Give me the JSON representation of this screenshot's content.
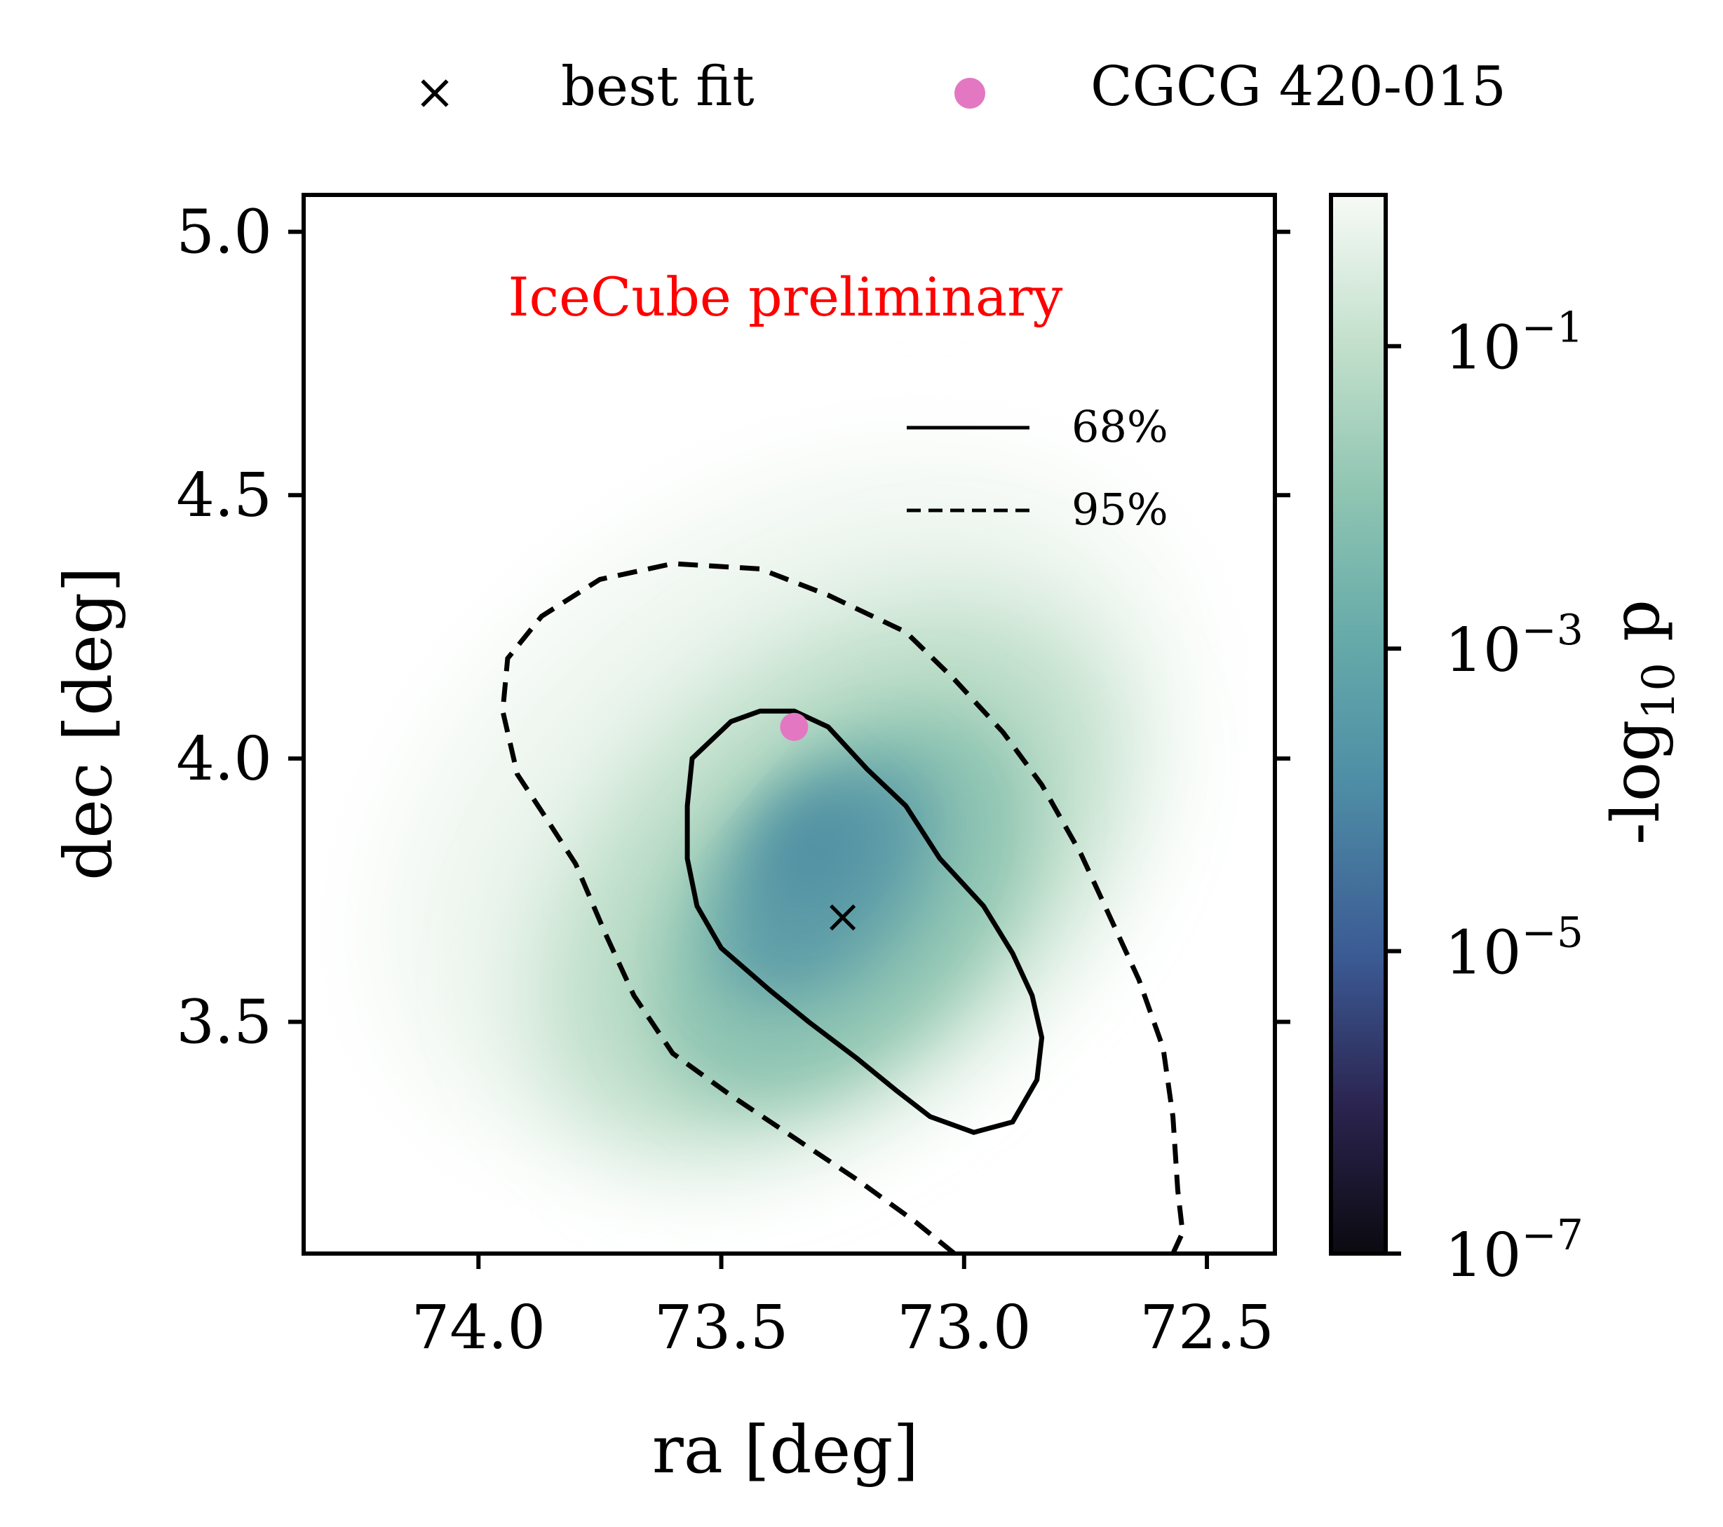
{
  "chart_data": {
    "type": "heatmap",
    "title": "",
    "xlabel": "ra [deg]",
    "ylabel": "dec [deg]",
    "xlim": [
      74.36,
      72.36
    ],
    "ylim": [
      3.06,
      5.07
    ],
    "x_ticks": [
      74.0,
      73.5,
      73.0,
      72.5
    ],
    "x_tick_labels": [
      "74.0",
      "73.5",
      "73.0",
      "72.5"
    ],
    "y_ticks": [
      3.5,
      4.0,
      4.5,
      5.0
    ],
    "y_tick_labels": [
      "3.5",
      "4.0",
      "4.5",
      "5.0"
    ],
    "annotation": {
      "text": "IceCube preliminary",
      "color": "#ff0000"
    },
    "colorbar": {
      "label": "-log10 p",
      "label_main": "-log",
      "label_sub": "10",
      "label_tail": " p",
      "scale": "log",
      "range_exponents": [
        -7,
        0
      ],
      "ticks": [
        {
          "exponent": -7,
          "base": "10",
          "exp": "−7"
        },
        {
          "exponent": -5,
          "base": "10",
          "exp": "−5"
        },
        {
          "exponent": -3,
          "base": "10",
          "exp": "−3"
        },
        {
          "exponent": -1,
          "base": "10",
          "exp": "−1"
        }
      ],
      "colormap": [
        "#0b0a10",
        "#2b2450",
        "#3b5a94",
        "#4f8fa6",
        "#66aaa9",
        "#8fc5b2",
        "#c3e0cc",
        "#f6faf6"
      ]
    },
    "best_fit": {
      "ra": 73.25,
      "dec": 3.7,
      "label": "best fit",
      "marker": "×",
      "color": "#000000"
    },
    "source": {
      "ra": 73.35,
      "dec": 4.06,
      "label": "CGCG 420-015",
      "color": "#e377c2"
    },
    "contours": [
      {
        "label": "68%",
        "style": "solid",
        "points": [
          [
            73.35,
            4.09
          ],
          [
            73.28,
            4.06
          ],
          [
            73.2,
            3.98
          ],
          [
            73.12,
            3.91
          ],
          [
            73.05,
            3.81
          ],
          [
            72.96,
            3.72
          ],
          [
            72.9,
            3.63
          ],
          [
            72.86,
            3.55
          ],
          [
            72.84,
            3.47
          ],
          [
            72.85,
            3.39
          ],
          [
            72.9,
            3.31
          ],
          [
            72.98,
            3.29
          ],
          [
            73.07,
            3.32
          ],
          [
            73.14,
            3.37
          ],
          [
            73.22,
            3.43
          ],
          [
            73.32,
            3.5
          ],
          [
            73.4,
            3.56
          ],
          [
            73.5,
            3.64
          ],
          [
            73.55,
            3.72
          ],
          [
            73.57,
            3.81
          ],
          [
            73.57,
            3.91
          ],
          [
            73.56,
            4.0
          ],
          [
            73.48,
            4.07
          ],
          [
            73.42,
            4.09
          ],
          [
            73.35,
            4.09
          ]
        ]
      },
      {
        "label": "95%",
        "style": "dashed",
        "points": [
          [
            73.02,
            3.06
          ],
          [
            73.1,
            3.12
          ],
          [
            73.22,
            3.2
          ],
          [
            73.35,
            3.28
          ],
          [
            73.48,
            3.36
          ],
          [
            73.6,
            3.44
          ],
          [
            73.68,
            3.55
          ],
          [
            73.74,
            3.67
          ],
          [
            73.8,
            3.8
          ],
          [
            73.87,
            3.9
          ],
          [
            73.92,
            3.97
          ],
          [
            73.95,
            4.09
          ],
          [
            73.94,
            4.19
          ],
          [
            73.87,
            4.27
          ],
          [
            73.75,
            4.34
          ],
          [
            73.6,
            4.37
          ],
          [
            73.42,
            4.36
          ],
          [
            73.28,
            4.31
          ],
          [
            73.12,
            4.24
          ],
          [
            73.02,
            4.15
          ],
          [
            72.92,
            4.05
          ],
          [
            72.84,
            3.95
          ],
          [
            72.76,
            3.82
          ],
          [
            72.7,
            3.7
          ],
          [
            72.64,
            3.58
          ],
          [
            72.59,
            3.45
          ],
          [
            72.57,
            3.32
          ],
          [
            72.56,
            3.18
          ],
          [
            72.55,
            3.1
          ],
          [
            72.57,
            3.06
          ]
        ]
      }
    ],
    "legend_top": [
      {
        "marker": "×",
        "label": "best fit"
      },
      {
        "marker": "●",
        "label": "CGCG 420-015"
      }
    ],
    "legend_inner": [
      {
        "style": "solid",
        "label": "68%"
      },
      {
        "style": "dashed",
        "label": "95%"
      }
    ]
  }
}
